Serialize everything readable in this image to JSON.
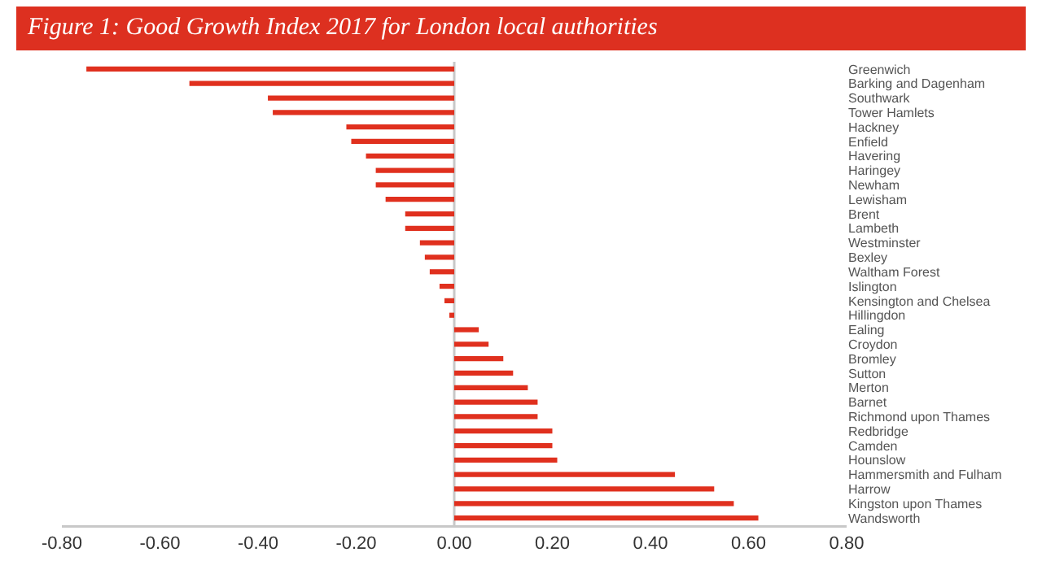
{
  "chart_data": {
    "type": "bar",
    "orientation": "horizontal",
    "title": "Figure 1: Good Growth Index 2017 for London local authorities",
    "categories": [
      "Greenwich",
      "Barking and Dagenham",
      "Southwark",
      "Tower Hamlets",
      "Hackney",
      "Enfield",
      "Havering",
      "Haringey",
      "Newham",
      "Lewisham",
      "Brent",
      "Lambeth",
      "Westminster",
      "Bexley",
      "Waltham Forest",
      "Islington",
      "Kensington and Chelsea",
      "Hillingdon",
      "Ealing",
      "Croydon",
      "Bromley",
      "Sutton",
      "Merton",
      "Barnet",
      "Richmond upon Thames",
      "Redbridge",
      "Camden",
      "Hounslow",
      "Hammersmith and Fulham",
      "Harrow",
      "Kingston upon Thames",
      "Wandsworth"
    ],
    "values": [
      -0.75,
      -0.54,
      -0.38,
      -0.37,
      -0.22,
      -0.21,
      -0.18,
      -0.16,
      -0.16,
      -0.14,
      -0.1,
      -0.1,
      -0.07,
      -0.06,
      -0.05,
      -0.03,
      -0.02,
      -0.01,
      0.05,
      0.07,
      0.1,
      0.12,
      0.15,
      0.17,
      0.17,
      0.2,
      0.2,
      0.21,
      0.45,
      0.53,
      0.57,
      0.62
    ],
    "color": "#e0301e",
    "xlim": [
      -0.8,
      0.8
    ],
    "xticks": [
      {
        "value": -0.8,
        "label": "-0.80"
      },
      {
        "value": -0.6,
        "label": "-0.60"
      },
      {
        "value": -0.4,
        "label": "-0.40"
      },
      {
        "value": -0.2,
        "label": "-0.20"
      },
      {
        "value": 0,
        "label": "0.00"
      },
      {
        "value": 0.2,
        "label": "0.20"
      },
      {
        "value": 0.4,
        "label": "0.40"
      },
      {
        "value": 0.6,
        "label": "0.60"
      },
      {
        "value": 0.8,
        "label": "0.80"
      }
    ],
    "ref_lines": [
      {
        "axis": "x",
        "value": 0,
        "color": "#c8c8c8"
      }
    ]
  }
}
